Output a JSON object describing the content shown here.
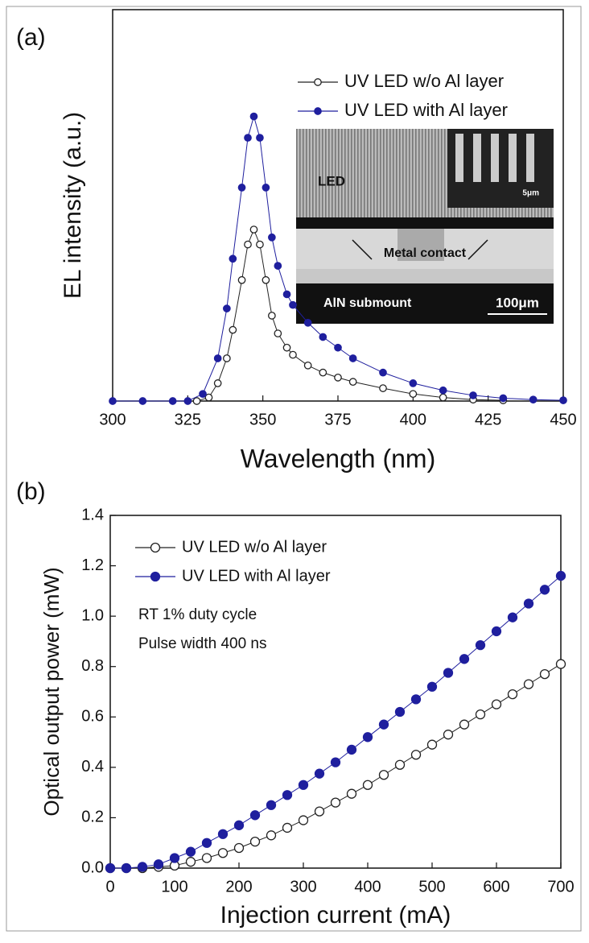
{
  "chart_data": [
    {
      "type": "line",
      "panel_label": "(a)",
      "x_label": "Wavelength (nm)",
      "y_label": "EL intensity (a.u.)",
      "xlim": [
        300,
        450
      ],
      "xticks": [
        300,
        325,
        350,
        375,
        400,
        425,
        450
      ],
      "ylim": [
        0,
        5.5
      ],
      "series": [
        {
          "name": "UV LED w/o Al layer",
          "color": "#222222",
          "marker": "open",
          "x": [
            328,
            332,
            335,
            338,
            340,
            343,
            345,
            347,
            349,
            351,
            353,
            355,
            358,
            360,
            365,
            370,
            375,
            380,
            390,
            400,
            410,
            420,
            430
          ],
          "values": [
            0,
            0.05,
            0.25,
            0.6,
            1.0,
            1.7,
            2.2,
            2.41,
            2.2,
            1.7,
            1.2,
            0.95,
            0.75,
            0.65,
            0.5,
            0.4,
            0.33,
            0.27,
            0.18,
            0.1,
            0.05,
            0.02,
            0.01
          ]
        },
        {
          "name": "UV LED with Al layer",
          "color": "#1f1f9e",
          "marker": "filled",
          "x": [
            300,
            310,
            320,
            325,
            330,
            335,
            338,
            340,
            343,
            345,
            347,
            349,
            351,
            353,
            355,
            358,
            360,
            365,
            370,
            375,
            380,
            390,
            400,
            410,
            420,
            430,
            440,
            450
          ],
          "values": [
            0,
            0,
            0,
            0,
            0.1,
            0.6,
            1.3,
            2.0,
            3.0,
            3.7,
            4.0,
            3.7,
            3.0,
            2.3,
            1.9,
            1.5,
            1.35,
            1.1,
            0.9,
            0.75,
            0.6,
            0.4,
            0.25,
            0.15,
            0.08,
            0.04,
            0.02,
            0.01
          ]
        }
      ],
      "inset": {
        "led": "LED",
        "small_scale": "5μm",
        "contact": "Metal contact",
        "submount": "AlN submount",
        "large_scale": "100μm"
      }
    },
    {
      "type": "line",
      "panel_label": "(b)",
      "x_label": "Injection current (mA)",
      "y_label": "Optical output power (mW)",
      "xlim": [
        0,
        700
      ],
      "xticks": [
        0,
        100,
        200,
        300,
        400,
        500,
        600,
        700
      ],
      "ylim": [
        0,
        1.4
      ],
      "yticks": [
        {
          "value": 0,
          "label": "0.0"
        },
        0.2,
        0.4,
        0.6,
        0.8,
        {
          "value": 1,
          "label": "1.0"
        },
        1.2,
        1.4
      ],
      "x": [
        0,
        25,
        50,
        75,
        100,
        125,
        150,
        175,
        200,
        225,
        250,
        275,
        300,
        325,
        350,
        375,
        400,
        425,
        450,
        475,
        500,
        525,
        550,
        575,
        600,
        625,
        650,
        675,
        700
      ],
      "series": [
        {
          "name": "UV LED w/o Al layer",
          "color": "#222222",
          "marker": "open",
          "values": [
            0,
            0,
            0,
            0.005,
            0.01,
            0.025,
            0.04,
            0.06,
            0.08,
            0.105,
            0.13,
            0.16,
            0.19,
            0.225,
            0.26,
            0.295,
            0.33,
            0.37,
            0.41,
            0.45,
            0.49,
            0.53,
            0.57,
            0.61,
            0.65,
            0.69,
            0.73,
            0.77,
            0.81
          ]
        },
        {
          "name": "UV LED with Al layer",
          "color": "#1f1f9e",
          "marker": "filled",
          "values": [
            0,
            0,
            0.005,
            0.015,
            0.04,
            0.065,
            0.1,
            0.135,
            0.17,
            0.21,
            0.25,
            0.29,
            0.33,
            0.375,
            0.42,
            0.47,
            0.52,
            0.57,
            0.62,
            0.67,
            0.72,
            0.775,
            0.83,
            0.885,
            0.94,
            0.995,
            1.05,
            1.105,
            1.16
          ]
        }
      ],
      "annotations": [
        "RT 1% duty cycle",
        "Pulse width 400 ns"
      ]
    }
  ]
}
